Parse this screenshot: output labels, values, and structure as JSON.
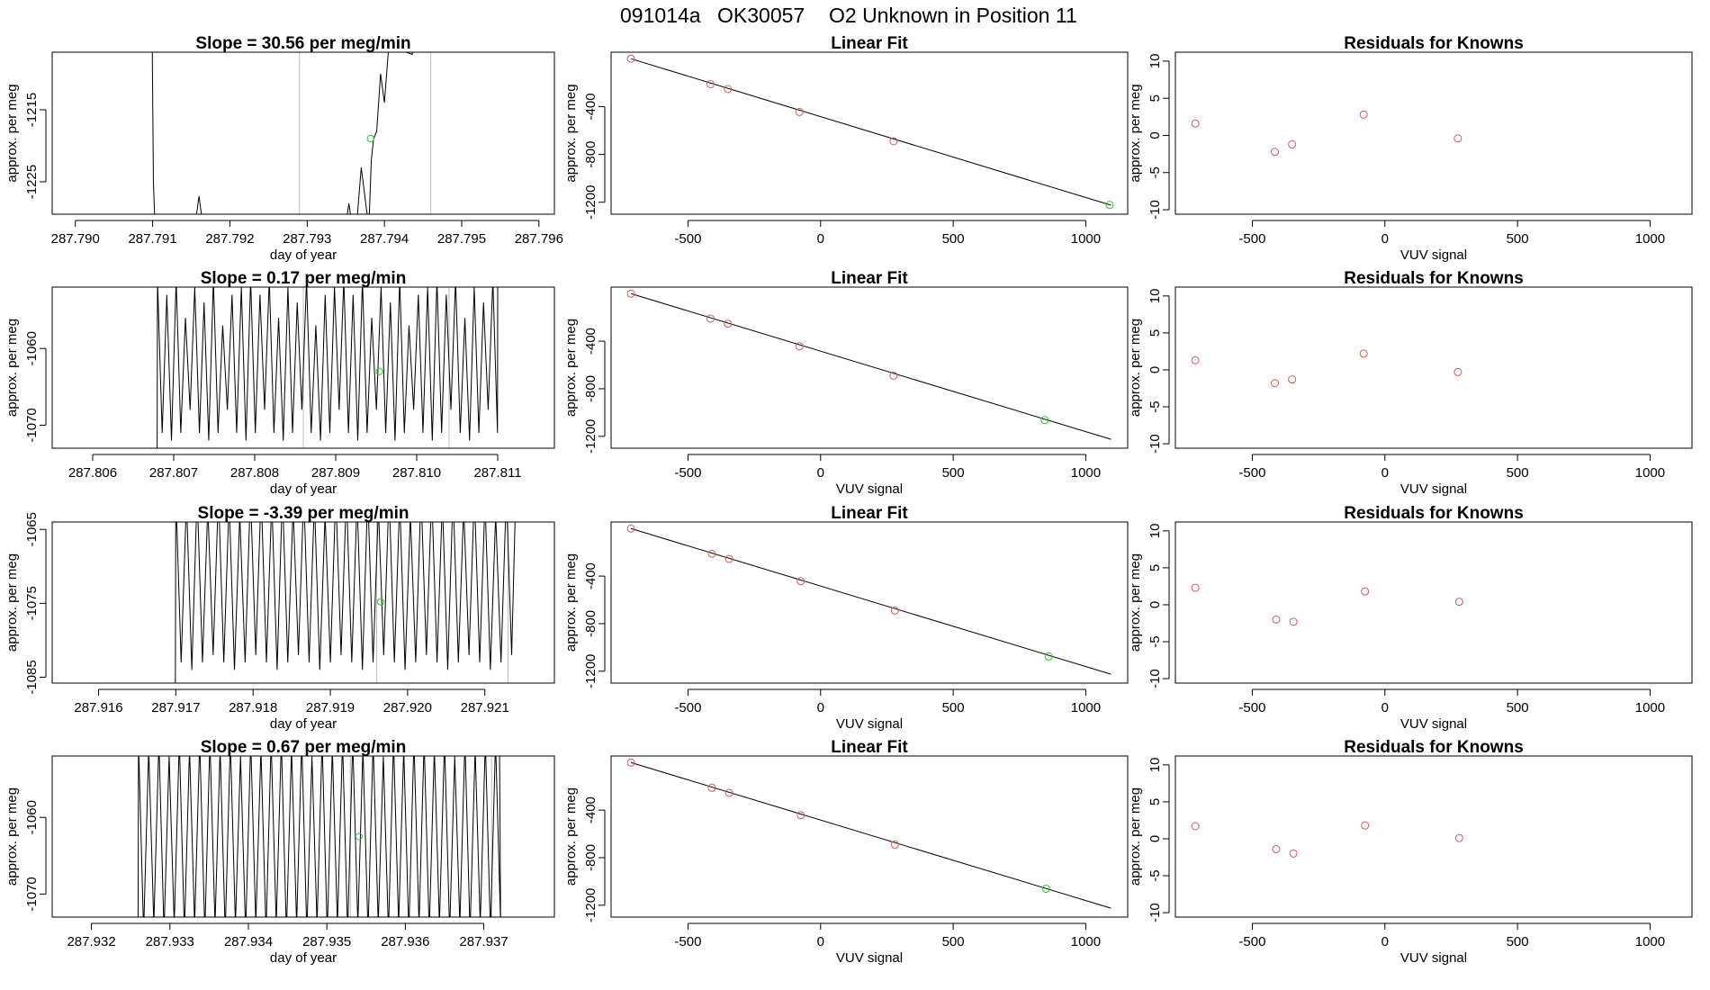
{
  "header": {
    "run_id": "091014a",
    "tank_id": "OK30057",
    "description": "O2 Unknown in Position  11"
  },
  "colors": {
    "known_points": "#cd5c5c",
    "unknown_point": "#22cc22",
    "trace": "#000000",
    "window_lines": "#bdbdbd"
  },
  "chart_data": [
    {
      "type": "line",
      "title_prefix": "Slope =",
      "slope": "30.56",
      "title_suffix": "per meg/min",
      "xlabel": "day of year",
      "ylabel": "approx. per meg",
      "xlim": [
        287.7897,
        287.7962
      ],
      "ylim": [
        -1229.5,
        -1207.0
      ],
      "xticks": [
        "287.790",
        "287.791",
        "287.792",
        "287.793",
        "287.794",
        "287.795",
        "287.796"
      ],
      "yticks": [
        "-1215",
        "-1225"
      ],
      "window_lines": [
        287.7929,
        287.7946
      ],
      "unknown_point": {
        "x": 287.79382,
        "y": -1219.0
      },
      "trace": [
        [
          287.79099,
          -1200
        ],
        [
          287.79101,
          -1225
        ],
        [
          287.79103,
          -1231
        ],
        [
          287.79155,
          -1231
        ],
        [
          287.7916,
          -1227
        ],
        [
          287.79165,
          -1231
        ],
        [
          287.7935,
          -1231
        ],
        [
          287.79354,
          -1228
        ],
        [
          287.79358,
          -1231
        ],
        [
          287.79364,
          -1231
        ],
        [
          287.7937,
          -1223
        ],
        [
          287.79377,
          -1229
        ],
        [
          287.7938,
          -1231
        ],
        [
          287.79383,
          -1222
        ],
        [
          287.79386,
          -1219
        ],
        [
          287.7939,
          -1218
        ],
        [
          287.79395,
          -1210
        ],
        [
          287.794,
          -1214
        ],
        [
          287.79405,
          -1207
        ],
        [
          287.7941,
          -1200
        ],
        [
          287.7942,
          -1200
        ],
        [
          287.79428,
          -1207
        ],
        [
          287.79436,
          -1207.3
        ],
        [
          287.79445,
          -1200
        ]
      ]
    },
    {
      "type": "line",
      "title_prefix": "Slope =",
      "slope": "0.17",
      "title_suffix": "per meg/min",
      "xlabel": "day of year",
      "ylabel": "approx. per meg",
      "xlim": [
        287.8055,
        287.8117
      ],
      "ylim": [
        -1073.0,
        -1052.0
      ],
      "xticks": [
        "287.806",
        "287.807",
        "287.808",
        "287.809",
        "287.810",
        "287.811"
      ],
      "yticks": [
        "-1060",
        "-1070"
      ],
      "window_lines": [
        287.8086,
        287.8104
      ],
      "unknown_point": {
        "x": 287.80954,
        "y": -1063.0
      },
      "trace_oscillation": {
        "start": 287.8068,
        "end": 287.811,
        "period": 0.000115,
        "peaks": [
          -1051,
          -1053,
          -1051,
          -1056,
          -1052,
          -1054,
          -1051,
          -1057,
          -1053,
          -1052
        ],
        "troughs": [
          -1068,
          -1071,
          -1073,
          -1070,
          -1072,
          -1066,
          -1069,
          -1071,
          -1073,
          -1065,
          -1068,
          -1072
        ]
      }
    },
    {
      "type": "line",
      "title_prefix": "Slope =",
      "slope": "-3.39",
      "title_suffix": "per meg/min",
      "xlabel": "day of year",
      "ylabel": "approx. per meg",
      "xlim": [
        287.9154,
        287.9219
      ],
      "ylim": [
        -1085.8,
        -1064.0
      ],
      "xticks": [
        "287.916",
        "287.917",
        "287.918",
        "287.919",
        "287.920",
        "287.921"
      ],
      "yticks": [
        "-1065",
        "-1075",
        "-1085"
      ],
      "window_lines": [
        287.9196,
        287.9213
      ],
      "unknown_point": {
        "x": 287.91965,
        "y": -1074.8
      },
      "trace_oscillation": {
        "start": 287.917,
        "end": 287.9214,
        "period": 0.000138,
        "peaks": [
          -1060,
          -1061,
          -1060,
          -1062,
          -1060,
          -1061,
          -1063,
          -1060
        ],
        "troughs": [
          -1081,
          -1083,
          -1085,
          -1087,
          -1084,
          -1088,
          -1086,
          -1083,
          -1087,
          -1085,
          -1082,
          -1088
        ]
      }
    },
    {
      "type": "line",
      "title_prefix": "Slope =",
      "slope": "0.67",
      "title_suffix": "per meg/min",
      "xlabel": "day of year",
      "ylabel": "approx. per meg",
      "xlim": [
        287.9315,
        287.9379
      ],
      "ylim": [
        -1073.0,
        -1052.0
      ],
      "xticks": [
        "287.932",
        "287.933",
        "287.934",
        "287.935",
        "287.936",
        "287.937"
      ],
      "yticks": [
        "-1060",
        "-1070"
      ],
      "window_lines": [
        287.9353,
        287.9371
      ],
      "unknown_point": {
        "x": 287.93541,
        "y": -1062.5
      },
      "trace_oscillation": {
        "start": 287.9326,
        "end": 287.9372,
        "period": 0.00013,
        "peaks": [
          -1050,
          -1051,
          -1050,
          -1052,
          -1050,
          -1051,
          -1050
        ],
        "troughs": [
          -1074,
          -1075,
          -1074,
          -1076,
          -1074,
          -1075
        ]
      }
    },
    {
      "type": "scatter",
      "title": "Linear Fit",
      "xlabel": "",
      "ylabel": "approx. per meg",
      "xlim": [
        -790,
        1158
      ],
      "ylim": [
        -1300,
        55
      ],
      "xticks": [
        -500,
        0,
        500,
        1000
      ],
      "yticks": [
        -400,
        -800,
        -1200
      ],
      "fit_line": [
        [
          -715,
          0
        ],
        [
          1095,
          -1225
        ]
      ],
      "knowns": [
        [
          -715,
          0
        ],
        [
          -415,
          -212
        ],
        [
          -350,
          -253
        ],
        [
          -80,
          -445
        ],
        [
          275,
          -690
        ]
      ],
      "unknown": [
        1090,
        -1222
      ]
    },
    {
      "type": "scatter",
      "title": "Linear Fit",
      "xlabel": "VUV signal",
      "ylabel": "approx. per meg",
      "xlim": [
        -790,
        1158
      ],
      "ylim": [
        -1300,
        55
      ],
      "xticks": [
        -500,
        0,
        500,
        1000
      ],
      "yticks": [
        -400,
        -800,
        -1200
      ],
      "fit_line": [
        [
          -715,
          0
        ],
        [
          1095,
          -1225
        ]
      ],
      "knowns": [
        [
          -715,
          0
        ],
        [
          -415,
          -210
        ],
        [
          -350,
          -253
        ],
        [
          -80,
          -443
        ],
        [
          275,
          -690
        ]
      ],
      "unknown": [
        845,
        -1063
      ]
    },
    {
      "type": "scatter",
      "title": "Linear Fit",
      "xlabel": "VUV signal",
      "ylabel": "approx. per meg",
      "xlim": [
        -790,
        1158
      ],
      "ylim": [
        -1300,
        55
      ],
      "xticks": [
        -500,
        0,
        500,
        1000
      ],
      "yticks": [
        -400,
        -800,
        -1200
      ],
      "fit_line": [
        [
          -715,
          0
        ],
        [
          1095,
          -1225
        ]
      ],
      "knowns": [
        [
          -715,
          0
        ],
        [
          -410,
          -212
        ],
        [
          -345,
          -255
        ],
        [
          -75,
          -443
        ],
        [
          280,
          -690
        ]
      ],
      "unknown": [
        860,
        -1075
      ]
    },
    {
      "type": "scatter",
      "title": "Linear Fit",
      "xlabel": "VUV signal",
      "ylabel": "approx. per meg",
      "xlim": [
        -790,
        1158
      ],
      "ylim": [
        -1300,
        55
      ],
      "xticks": [
        -500,
        0,
        500,
        1000
      ],
      "yticks": [
        -400,
        -800,
        -1200
      ],
      "fit_line": [
        [
          -715,
          0
        ],
        [
          1095,
          -1225
        ]
      ],
      "knowns": [
        [
          -715,
          0
        ],
        [
          -410,
          -212
        ],
        [
          -345,
          -255
        ],
        [
          -75,
          -443
        ],
        [
          280,
          -690
        ]
      ],
      "unknown": [
        850,
        -1062
      ]
    },
    {
      "type": "scatter",
      "title": "Residuals for Knowns",
      "xlabel": "VUV signal",
      "ylabel": "approx. per meg",
      "xlim": [
        -790,
        1158
      ],
      "ylim": [
        -10.6,
        11.2
      ],
      "xticks": [
        -500,
        0,
        500,
        1000
      ],
      "yticks": [
        10,
        5,
        0,
        -5,
        -10
      ],
      "knowns": [
        [
          -715,
          1.6
        ],
        [
          -415,
          -2.2
        ],
        [
          -350,
          -1.2
        ],
        [
          -80,
          2.8
        ],
        [
          275,
          -0.4
        ]
      ]
    },
    {
      "type": "scatter",
      "title": "Residuals for Knowns",
      "xlabel": "VUV signal",
      "ylabel": "approx. per meg",
      "xlim": [
        -790,
        1158
      ],
      "ylim": [
        -10.6,
        11.2
      ],
      "xticks": [
        -500,
        0,
        500,
        1000
      ],
      "yticks": [
        10,
        5,
        0,
        -5,
        -10
      ],
      "knowns": [
        [
          -715,
          1.3
        ],
        [
          -415,
          -1.8
        ],
        [
          -350,
          -1.3
        ],
        [
          -80,
          2.2
        ],
        [
          275,
          -0.3
        ]
      ]
    },
    {
      "type": "scatter",
      "title": "Residuals for Knowns",
      "xlabel": "VUV signal",
      "ylabel": "approx. per meg",
      "xlim": [
        -790,
        1158
      ],
      "ylim": [
        -10.6,
        11.2
      ],
      "xticks": [
        -500,
        0,
        500,
        1000
      ],
      "yticks": [
        10,
        5,
        0,
        -5,
        -10
      ],
      "knowns": [
        [
          -715,
          2.3
        ],
        [
          -410,
          -2.0
        ],
        [
          -345,
          -2.3
        ],
        [
          -75,
          1.8
        ],
        [
          280,
          0.4
        ]
      ]
    },
    {
      "type": "scatter",
      "title": "Residuals for Knowns",
      "xlabel": "VUV signal",
      "ylabel": "approx. per meg",
      "xlim": [
        -790,
        1158
      ],
      "ylim": [
        -10.6,
        11.2
      ],
      "xticks": [
        -500,
        0,
        500,
        1000
      ],
      "yticks": [
        10,
        5,
        0,
        -5,
        -10
      ],
      "knowns": [
        [
          -715,
          1.7
        ],
        [
          -410,
          -1.4
        ],
        [
          -345,
          -2.0
        ],
        [
          -75,
          1.8
        ],
        [
          280,
          0.1
        ]
      ]
    }
  ]
}
